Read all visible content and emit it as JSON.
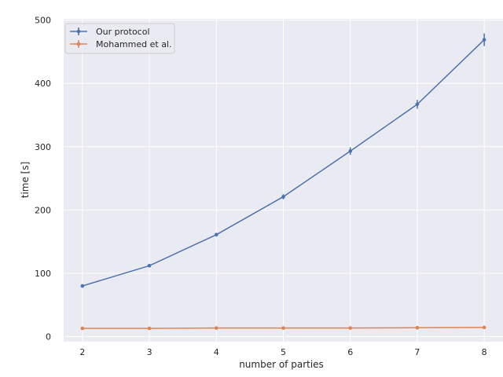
{
  "chart_data": {
    "type": "line",
    "title": "",
    "xlabel": "number of parties",
    "ylabel": "time [s]",
    "x": [
      2,
      3,
      4,
      5,
      6,
      7,
      8
    ],
    "xticks": [
      "2",
      "3",
      "4",
      "5",
      "6",
      "7",
      "8"
    ],
    "yticks": [
      "0",
      "100",
      "200",
      "300",
      "400",
      "500"
    ],
    "xlim": [
      1.72,
      8.28
    ],
    "ylim": [
      -8,
      502
    ],
    "grid": true,
    "legend_position": "upper-left",
    "series": [
      {
        "name": "Our protocol",
        "color": "#4c72b0",
        "values": [
          80,
          112,
          161,
          221,
          293,
          367,
          469
        ],
        "errors": [
          1.5,
          2,
          3,
          4,
          6,
          7,
          10
        ]
      },
      {
        "name": "Mohammed et al.",
        "color": "#dd8452",
        "values": [
          13,
          13,
          13.5,
          13.5,
          13.5,
          14,
          14.5
        ],
        "errors": [
          0.5,
          0.5,
          0.5,
          0.5,
          0.5,
          0.5,
          0.5
        ]
      }
    ],
    "colors": {
      "plot_background": "#eaeaf2",
      "grid": "#ffffff",
      "text": "#262626"
    }
  }
}
